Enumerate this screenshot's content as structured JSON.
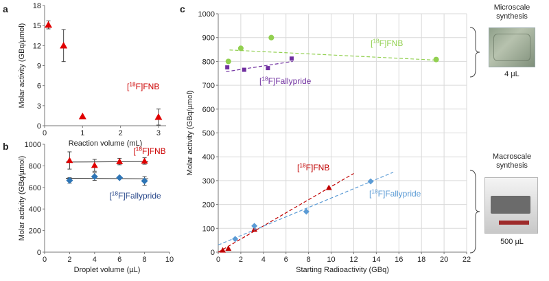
{
  "panels": {
    "a": {
      "letter": "a",
      "label": "[18F]FNB",
      "label_color": "#cc0000",
      "chart_data": {
        "type": "scatter",
        "xlabel": "Reaction volume (mL)",
        "ylabel": "Molar activity (GBq/µmol)",
        "xlim": [
          0,
          3.2
        ],
        "ylim": [
          0,
          18
        ],
        "xticks": [
          0,
          1,
          2,
          3
        ],
        "yticks": [
          0,
          3,
          6,
          9,
          12,
          15,
          18
        ],
        "series": [
          {
            "name": "[18F]FNB",
            "color": "#e00000",
            "marker": "triangle",
            "x": [
              0.1,
              0.5,
              1.0,
              3.0
            ],
            "y": [
              15.1,
              12.0,
              1.4,
              1.3
            ],
            "err": [
              0.6,
              2.4,
              0.0,
              1.2
            ]
          }
        ]
      }
    },
    "b": {
      "letter": "b",
      "label_fnb": "[18F]FNB",
      "label_fnb_color": "#cc0000",
      "label_fally": "[18F]Fallypride",
      "label_fally_color": "#2b4a8c",
      "chart_data": {
        "type": "scatter",
        "xlabel": "Droplet volume (µL)",
        "ylabel": "Molar activity (GBq/µmol)",
        "xlim": [
          0,
          10
        ],
        "ylim": [
          0,
          1000
        ],
        "xticks": [
          0,
          2,
          4,
          6,
          8,
          10
        ],
        "yticks": [
          0,
          200,
          400,
          600,
          800,
          1000
        ],
        "series": [
          {
            "name": "[18F]FNB",
            "color": "#e00000",
            "marker": "triangle",
            "x": [
              2,
              4,
              6,
              8
            ],
            "y": [
              850,
              805,
              840,
              845
            ],
            "err": [
              80,
              55,
              30,
              30
            ],
            "trend": [
              835,
              840
            ]
          },
          {
            "name": "[18F]Fallypride",
            "color": "#2e75b6",
            "marker": "diamond",
            "x": [
              2,
              4,
              6,
              8
            ],
            "y": [
              665,
              700,
              690,
              660
            ],
            "err": [
              25,
              35,
              10,
              40
            ],
            "trend": [
              685,
              680
            ]
          }
        ]
      }
    },
    "c": {
      "letter": "c",
      "label_fnb_micro": "[18F]FNB",
      "label_fnb_micro_color": "#92d050",
      "label_fally_micro": "[18F]Fallypride",
      "label_fally_micro_color": "#7030a0",
      "label_fnb_macro": "[18F]FNB",
      "label_fnb_macro_color": "#c00000",
      "label_fally_macro": "[18F]Fallypride",
      "label_fally_macro_color": "#5b9bd5",
      "chart_data": {
        "type": "scatter",
        "xlabel": "Starting Radioactivity (GBq)",
        "ylabel": "Molar activity (GBq/µmol)",
        "xlim": [
          0,
          22
        ],
        "ylim": [
          0,
          1000
        ],
        "xticks": [
          0,
          2,
          4,
          6,
          8,
          10,
          12,
          14,
          16,
          18,
          20,
          22
        ],
        "yticks": [
          0,
          100,
          200,
          300,
          400,
          500,
          600,
          700,
          800,
          900,
          1000
        ],
        "series": [
          {
            "name": "[18F]FNB microscale",
            "color": "#92d050",
            "marker": "circle",
            "x": [
              0.9,
              2.0,
              4.7,
              19.3
            ],
            "y": [
              800,
              855,
              900,
              808
            ],
            "trend_x": [
              1.0,
              19.5
            ],
            "trend_y": [
              848,
              805
            ]
          },
          {
            "name": "[18F]Fallypride microscale",
            "color": "#7030a0",
            "marker": "square",
            "x": [
              0.8,
              2.3,
              4.4,
              6.5
            ],
            "y": [
              775,
              765,
              772,
              812
            ],
            "trend_x": [
              0.7,
              6.6
            ],
            "trend_y": [
              757,
              800
            ]
          },
          {
            "name": "[18F]FNB macroscale",
            "color": "#c00000",
            "marker": "triangle",
            "x": [
              0.4,
              0.9,
              3.2,
              9.8
            ],
            "y": [
              8,
              15,
              95,
              270
            ],
            "trend_x": [
              0.0,
              12.0
            ],
            "trend_y": [
              0,
              330
            ]
          },
          {
            "name": "[18F]Fallypride macroscale",
            "color": "#5b9bd5",
            "marker": "diamond",
            "x": [
              1.5,
              3.2,
              7.8,
              13.5
            ],
            "y": [
              55,
              110,
              170,
              297
            ],
            "trend_x": [
              0.0,
              15.5
            ],
            "trend_y": [
              30,
              335
            ]
          }
        ]
      }
    }
  },
  "side": {
    "micro_title_1": "Microscale",
    "micro_title_2": "synthesis",
    "micro_volume": "4 µL",
    "macro_title_1": "Macroscale",
    "macro_title_2": "synthesis",
    "macro_volume": "500 µL"
  }
}
